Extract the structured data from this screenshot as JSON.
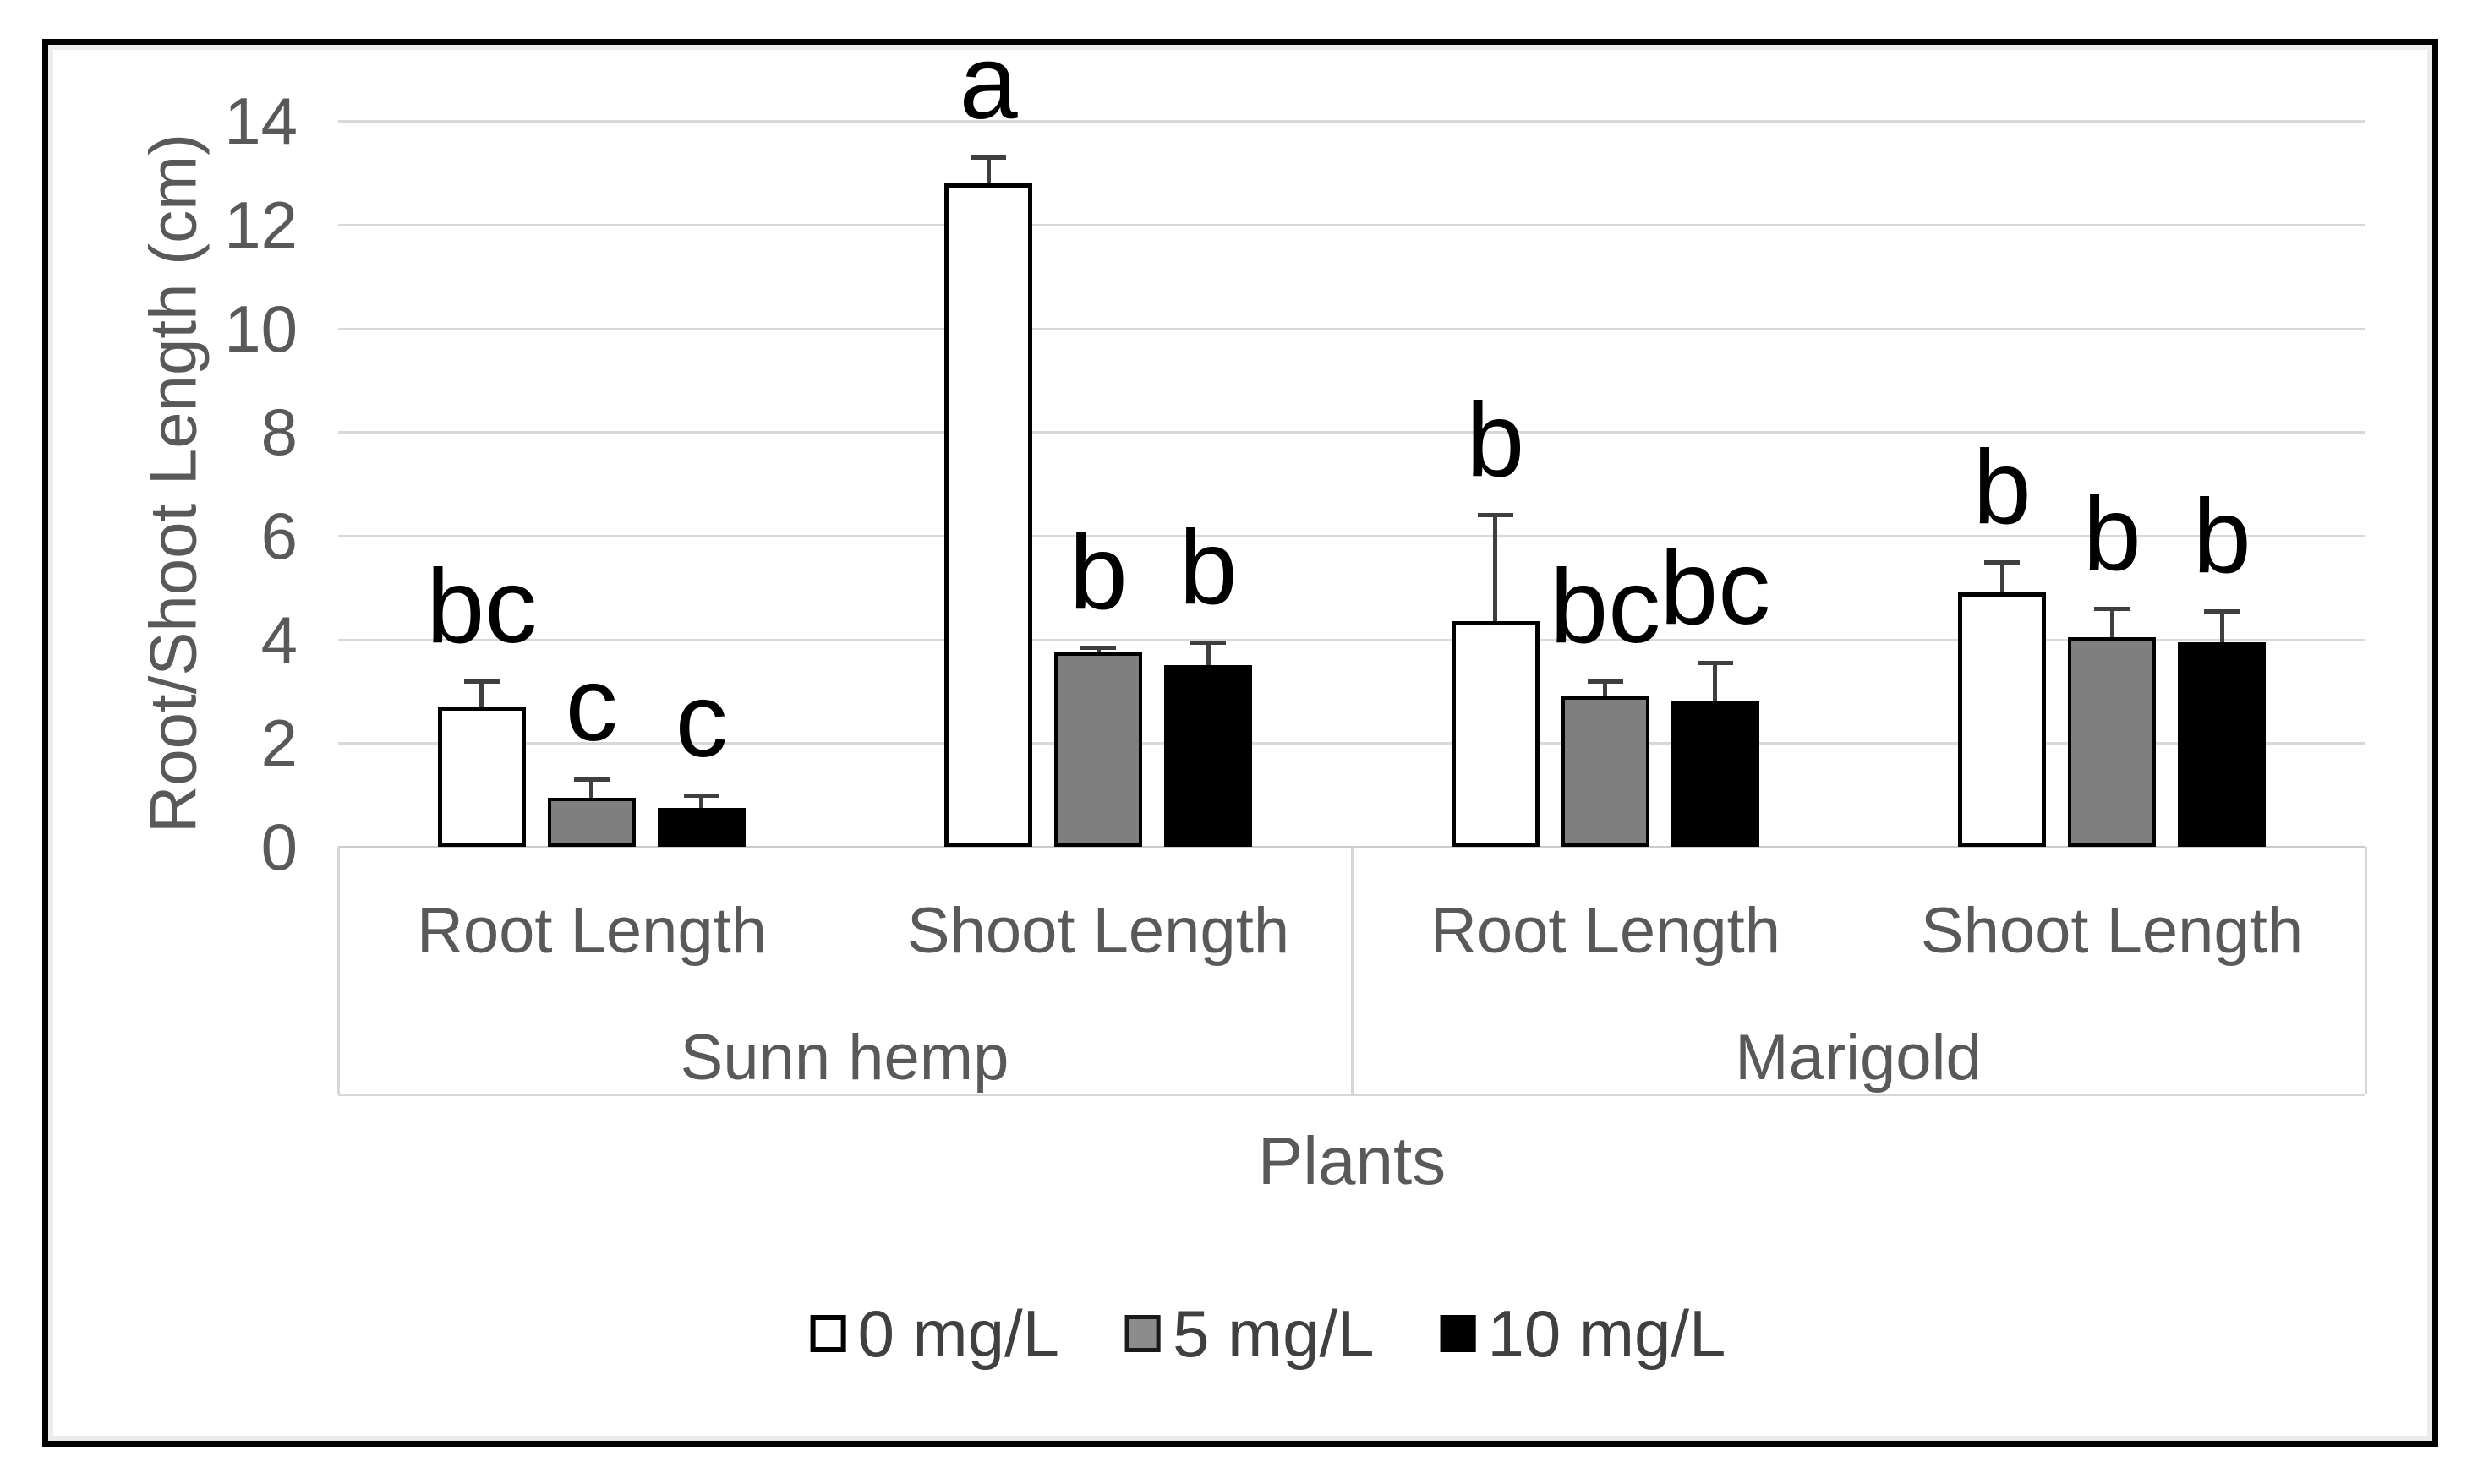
{
  "chart_data": {
    "type": "bar",
    "title": "",
    "ylabel": "Root/Shoot Length (cm)",
    "xlabel": "Plants",
    "ylim": [
      0,
      14
    ],
    "yticks": [
      0,
      2,
      4,
      6,
      8,
      10,
      12,
      14
    ],
    "grid": true,
    "legend_position": "bottom",
    "series": [
      "0 mg/L",
      "5 mg/L",
      "10 mg/L"
    ],
    "series_colors": {
      "0 mg/L": "#ffffff",
      "5 mg/L": "#7f7f7f",
      "10 mg/L": "#000000"
    },
    "legend": [
      {
        "label": "0 mg/L",
        "color": "#ffffff"
      },
      {
        "label": "5 mg/L",
        "color": "#7f7f7f"
      },
      {
        "label": "10 mg/L",
        "color": "#000000"
      }
    ],
    "x_axis": {
      "title": "Plants",
      "level1_labels": [
        "Root Length",
        "Shoot Length",
        "Root Length",
        "Shoot Length"
      ],
      "level2_labels": [
        "Sunn hemp",
        "Marigold"
      ]
    },
    "y_axis": {
      "title": "Root/Shoot Length (cm)"
    },
    "groups": [
      {
        "plant": "Sunn hemp",
        "measure": "Root Length",
        "bars": [
          {
            "series": "0 mg/L",
            "value": 2.7,
            "error_plus": 0.5,
            "letter": "bc"
          },
          {
            "series": "5 mg/L",
            "value": 0.95,
            "error_plus": 0.35,
            "letter": "c"
          },
          {
            "series": "10 mg/L",
            "value": 0.75,
            "error_plus": 0.25,
            "letter": "c"
          }
        ]
      },
      {
        "plant": "Sunn hemp",
        "measure": "Shoot Length",
        "bars": [
          {
            "series": "0 mg/L",
            "value": 12.8,
            "error_plus": 0.5,
            "letter": "a"
          },
          {
            "series": "5 mg/L",
            "value": 3.75,
            "error_plus": 0.1,
            "letter": "b"
          },
          {
            "series": "10 mg/L",
            "value": 3.5,
            "error_plus": 0.45,
            "letter": "b"
          }
        ]
      },
      {
        "plant": "Marigold",
        "measure": "Root Length",
        "bars": [
          {
            "series": "0 mg/L",
            "value": 4.35,
            "error_plus": 2.05,
            "letter": "b"
          },
          {
            "series": "5 mg/L",
            "value": 2.9,
            "error_plus": 0.3,
            "letter": "bc"
          },
          {
            "series": "10 mg/L",
            "value": 2.8,
            "error_plus": 0.75,
            "letter": "bc"
          }
        ]
      },
      {
        "plant": "Marigold",
        "measure": "Shoot Length",
        "bars": [
          {
            "series": "0 mg/L",
            "value": 4.9,
            "error_plus": 0.6,
            "letter": "b"
          },
          {
            "series": "5 mg/L",
            "value": 4.05,
            "error_plus": 0.55,
            "letter": "b"
          },
          {
            "series": "10 mg/L",
            "value": 3.95,
            "error_plus": 0.6,
            "letter": "b"
          }
        ]
      }
    ]
  },
  "style_colors": {
    "grid": "#d9d9d9",
    "axis_text": "#595959",
    "letter_text": "#000000",
    "error_bar": "#3f3f3f",
    "frame_border": "#000000"
  }
}
